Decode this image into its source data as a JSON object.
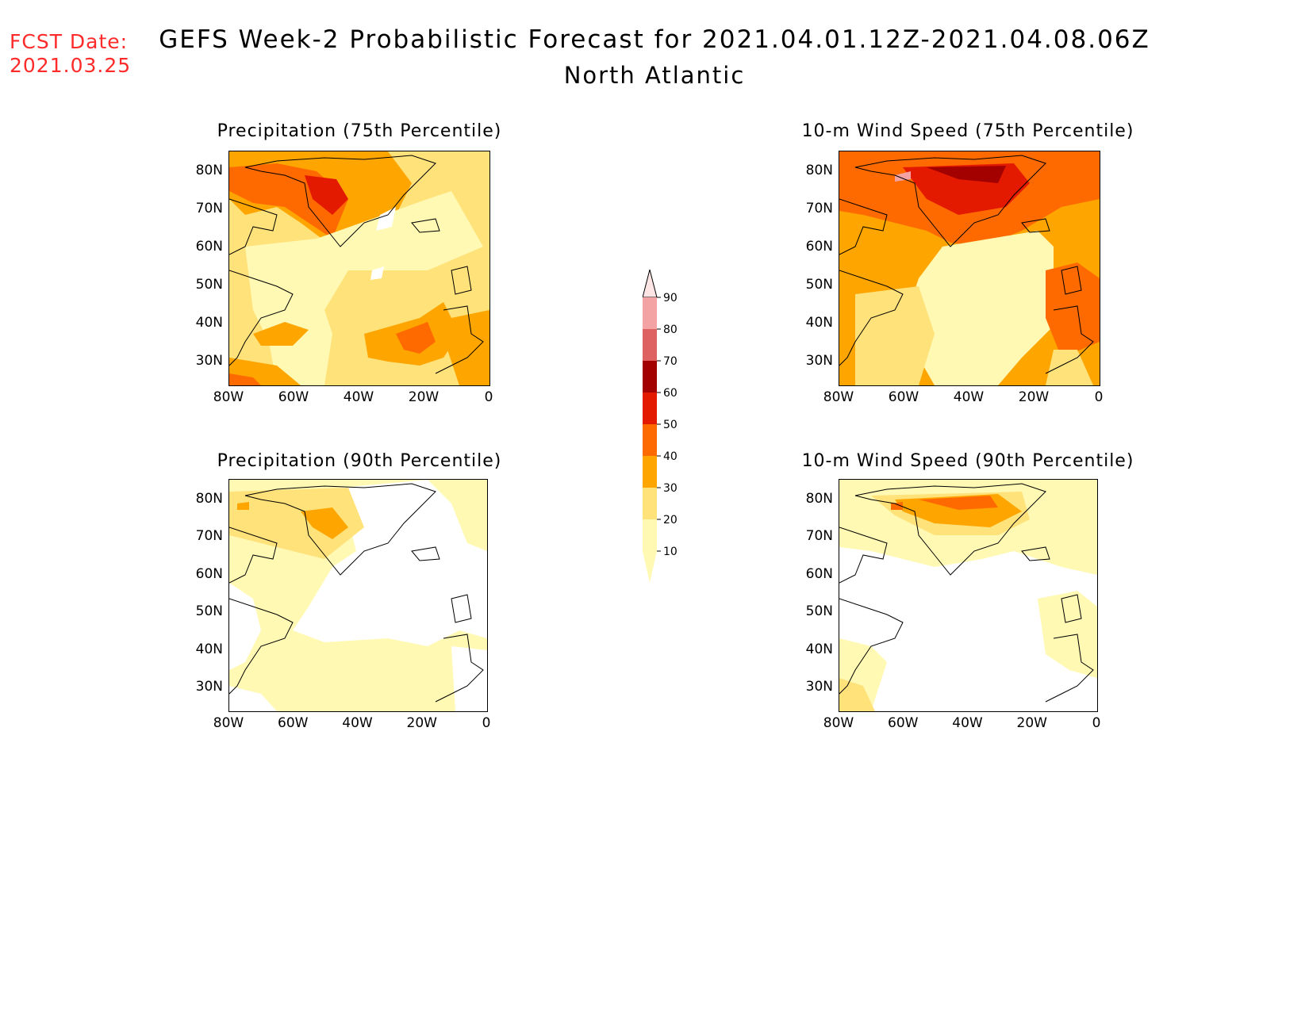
{
  "header": {
    "fcst_label": "FCST Date:",
    "fcst_date": "2021.03.25",
    "title": "GEFS Week-2 Probabilistic Forecast for 2021.04.01.12Z-2021.04.08.06Z",
    "region": "North Atlantic"
  },
  "panels": [
    {
      "title": "Precipitation (75th Percentile)"
    },
    {
      "title": "10-m Wind Speed (75th Percentile)"
    },
    {
      "title": "Precipitation (90th Percentile)"
    },
    {
      "title": "10-m Wind Speed (90th Percentile)"
    }
  ],
  "axes": {
    "lat_labels": [
      "80N",
      "70N",
      "60N",
      "50N",
      "40N",
      "30N"
    ],
    "lon_labels": [
      "80W",
      "60W",
      "40W",
      "20W",
      "0"
    ]
  },
  "colorbar": {
    "levels": [
      "10",
      "20",
      "30",
      "40",
      "50",
      "60",
      "70",
      "80",
      "90"
    ],
    "colors": [
      "#fff9b4",
      "#ffe27a",
      "#ffa500",
      "#ff6a00",
      "#e41a00",
      "#a30000",
      "#df6262",
      "#f3a3a3",
      "#fde5e5"
    ]
  }
}
